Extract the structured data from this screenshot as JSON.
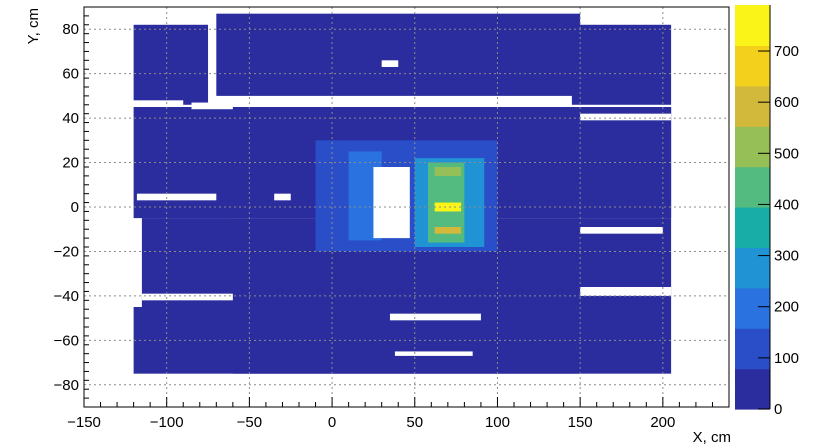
{
  "chart_data": {
    "type": "heatmap",
    "title": "",
    "xlabel": "X, cm",
    "ylabel": "Y, cm",
    "xlim": [
      -150,
      240
    ],
    "ylim": [
      -90,
      90
    ],
    "x_ticks": [
      -150,
      -100,
      -50,
      0,
      50,
      100,
      150,
      200
    ],
    "y_ticks": [
      -80,
      -60,
      -40,
      -20,
      0,
      20,
      40,
      60,
      80
    ],
    "grid": true,
    "colorbar": {
      "range": [
        0,
        790
      ],
      "ticks": [
        0,
        100,
        200,
        300,
        400,
        500,
        600,
        700
      ],
      "colors": [
        "#2b2d9e",
        "#2a4ec8",
        "#2a72df",
        "#1f93d4",
        "#19ada8",
        "#53bb80",
        "#97bf57",
        "#d2b93c",
        "#f2d01c",
        "#fbf418"
      ]
    },
    "regions": [
      {
        "x": [
          -120,
          -75
        ],
        "y": [
          46,
          82
        ],
        "value": 35
      },
      {
        "x": [
          -70,
          150
        ],
        "y": [
          50,
          87
        ],
        "value": 45
      },
      {
        "x": [
          145,
          205
        ],
        "y": [
          46,
          82
        ],
        "value": 35
      },
      {
        "x": [
          -115,
          205
        ],
        "y": [
          -5,
          45
        ],
        "value": 60
      },
      {
        "x": [
          -120,
          -60
        ],
        "y": [
          -5,
          45
        ],
        "value": 40
      },
      {
        "x": [
          148,
          205
        ],
        "y": [
          -5,
          45
        ],
        "value": 40
      },
      {
        "x": [
          -115,
          205
        ],
        "y": [
          -45,
          -5
        ],
        "value": 55
      },
      {
        "x": [
          -120,
          205
        ],
        "y": [
          -75,
          -45
        ],
        "value": 45
      },
      {
        "x": [
          -60,
          150
        ],
        "y": [
          -75,
          -45
        ],
        "value": 50
      }
    ],
    "hotspots": [
      {
        "x": [
          -10,
          100
        ],
        "y": [
          -20,
          30
        ],
        "value": 150
      },
      {
        "x": [
          50,
          92
        ],
        "y": [
          -18,
          22
        ],
        "value": 240
      },
      {
        "x": [
          58,
          80
        ],
        "y": [
          -16,
          20
        ],
        "value": 420
      },
      {
        "x": [
          62,
          78
        ],
        "y": [
          -2,
          2
        ],
        "value": 760
      },
      {
        "x": [
          62,
          78
        ],
        "y": [
          -12,
          -9
        ],
        "value": 620
      },
      {
        "x": [
          62,
          78
        ],
        "y": [
          14,
          18
        ],
        "value": 520
      },
      {
        "x": [
          10,
          30
        ],
        "y": [
          -15,
          25
        ],
        "value": 230
      }
    ],
    "gaps": [
      {
        "x": [
          25,
          47
        ],
        "y": [
          -14,
          18
        ]
      },
      {
        "x": [
          -122,
          -90
        ],
        "y": [
          45,
          48
        ]
      },
      {
        "x": [
          -85,
          -60
        ],
        "y": [
          44,
          47
        ]
      },
      {
        "x": [
          -118,
          -70
        ],
        "y": [
          3,
          6
        ]
      },
      {
        "x": [
          -35,
          -25
        ],
        "y": [
          3,
          6
        ]
      },
      {
        "x": [
          150,
          205
        ],
        "y": [
          39,
          42
        ]
      },
      {
        "x": [
          150,
          200
        ],
        "y": [
          -12,
          -9
        ]
      },
      {
        "x": [
          -115,
          -60
        ],
        "y": [
          -42,
          -39
        ]
      },
      {
        "x": [
          150,
          205
        ],
        "y": [
          -40,
          -36
        ]
      },
      {
        "x": [
          35,
          90
        ],
        "y": [
          -51,
          -48
        ]
      },
      {
        "x": [
          38,
          85
        ],
        "y": [
          -67,
          -65
        ]
      },
      {
        "x": [
          30,
          40
        ],
        "y": [
          63,
          66
        ]
      }
    ]
  }
}
